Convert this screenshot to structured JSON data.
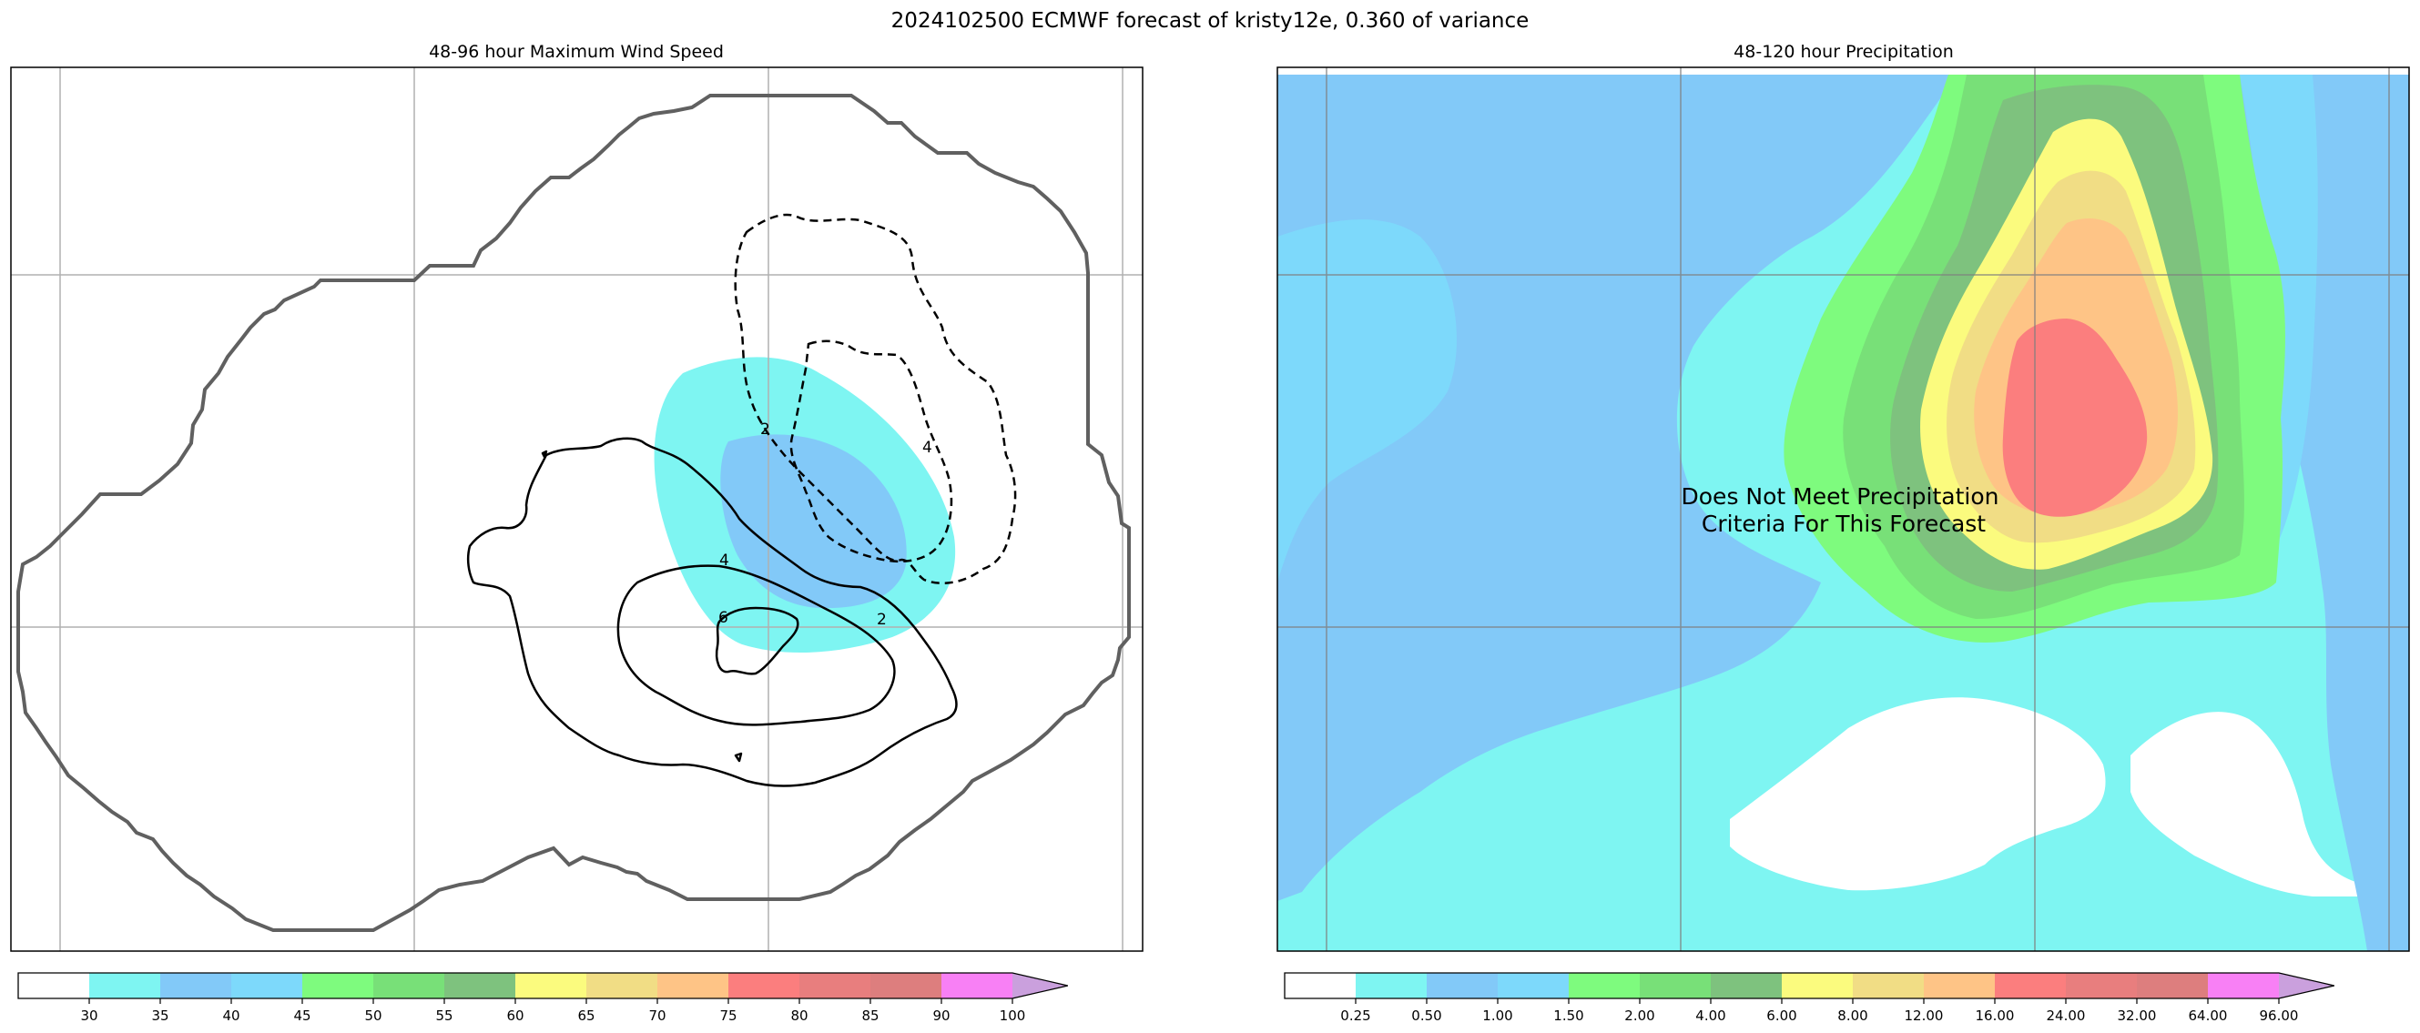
{
  "figure": {
    "suptitle": "2024102500 ECMWF forecast of kristy12e, 0.360 of variance"
  },
  "colors": {
    "axes_frame": "#000000",
    "grid": "#b0b0b0",
    "envelope_line": "#606060",
    "contour_line": "#000000",
    "colorbar_outline": "#000000"
  },
  "chart_data": [
    {
      "type": "contour",
      "title": "48-96 hour Maximum Wind Speed",
      "xlabel": "",
      "ylabel": "",
      "grid": true,
      "contour_labels": [
        "2",
        "4",
        "2",
        "4",
        "6"
      ],
      "colorbar": {
        "tick_labels": [
          "30",
          "35",
          "40",
          "45",
          "50",
          "55",
          "60",
          "65",
          "70",
          "75",
          "80",
          "85",
          "90",
          "100"
        ],
        "colors": [
          "#ffffff",
          "#7ef5f2",
          "#82c9f8",
          "#7dd9fb",
          "#7efb7e",
          "#78e078",
          "#7ec27e",
          "#fbfb7e",
          "#f1dd85",
          "#fec486",
          "#fb7e7e",
          "#e87e7e",
          "#dd7e7e",
          "#f880f5",
          "#caa0dd"
        ],
        "extend": "max"
      }
    },
    {
      "type": "contourf",
      "title": "48-120 hour Precipitation",
      "xlabel": "",
      "ylabel": "",
      "grid": true,
      "annotation": "Does Not Meet Precipitation\nCriteria For This Forecast",
      "colorbar": {
        "tick_labels": [
          "0.25",
          "0.50",
          "1.00",
          "1.50",
          "2.00",
          "4.00",
          "6.00",
          "8.00",
          "12.00",
          "16.00",
          "24.00",
          "32.00",
          "64.00",
          "96.00"
        ],
        "colors": [
          "#ffffff",
          "#7ef5f2",
          "#82c9f8",
          "#7dd9fb",
          "#7efb7e",
          "#78e078",
          "#7ec27e",
          "#fbfb7e",
          "#f1dd85",
          "#fec486",
          "#fb7e7e",
          "#e87e7e",
          "#dd7e7e",
          "#f880f5",
          "#caa0dd"
        ],
        "extend": "max"
      }
    }
  ]
}
